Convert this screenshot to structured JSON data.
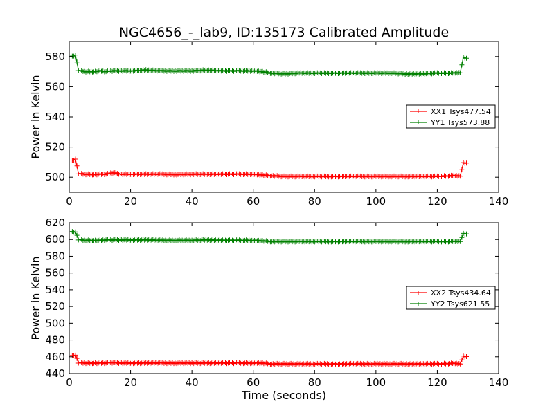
{
  "figure": {
    "title": "NGC4656_-_lab9, ID:135173 Calibrated Amplitude"
  },
  "chart_data": [
    {
      "type": "line",
      "title": "NGC4656_-_lab9, ID:135173 Calibrated Amplitude",
      "xlabel": "",
      "ylabel": "Power in Kelvin",
      "xlim": [
        0,
        140
      ],
      "ylim": [
        490,
        590
      ],
      "xticks": [
        "0",
        "20",
        "40",
        "60",
        "80",
        "100",
        "120",
        "140"
      ],
      "yticks": [
        "500",
        "520",
        "540",
        "560",
        "580"
      ],
      "grid": false,
      "legend_position": "center-right",
      "x": [
        1,
        2,
        3,
        5,
        8,
        10,
        12,
        14,
        17,
        20,
        25,
        30,
        35,
        40,
        45,
        50,
        55,
        60,
        63,
        66,
        70,
        75,
        80,
        85,
        90,
        95,
        100,
        105,
        110,
        115,
        120,
        125,
        127.5,
        128.5,
        129.5
      ],
      "series": [
        {
          "name": "XX1 Tsys477.54",
          "color": "#ff0000",
          "marker": "+",
          "values": [
            511,
            512,
            502.5,
            502,
            501.8,
            502,
            502,
            503,
            502,
            502,
            502,
            502,
            501.8,
            502,
            502,
            502,
            502,
            502,
            501.5,
            501,
            500.5,
            500.5,
            500.5,
            500.5,
            500.5,
            500.5,
            500.5,
            500.5,
            500.5,
            500.5,
            500.5,
            501,
            501,
            509.5,
            509.5
          ]
        },
        {
          "name": "YY1 Tsys573.88",
          "color": "#008000",
          "marker": "+",
          "values": [
            580,
            581,
            571,
            570,
            570,
            570.5,
            570,
            570.5,
            570.5,
            570.5,
            571,
            570.5,
            570.5,
            570.5,
            571,
            570.5,
            570.5,
            570.5,
            570,
            569,
            568.5,
            569,
            569,
            569,
            569,
            569,
            569,
            569,
            568.5,
            568.5,
            569,
            569,
            569.5,
            579.5,
            579
          ]
        }
      ]
    },
    {
      "type": "line",
      "title": "",
      "xlabel": "Time (seconds)",
      "ylabel": "Power in Kelvin",
      "xlim": [
        0,
        140
      ],
      "ylim": [
        440,
        620
      ],
      "xticks": [
        "0",
        "20",
        "40",
        "60",
        "80",
        "100",
        "120",
        "140"
      ],
      "yticks": [
        "440",
        "460",
        "480",
        "500",
        "520",
        "540",
        "560",
        "580",
        "600",
        "620"
      ],
      "grid": false,
      "legend_position": "center-right",
      "x": [
        1,
        2,
        3,
        5,
        8,
        10,
        12,
        14,
        17,
        20,
        25,
        30,
        35,
        40,
        45,
        50,
        55,
        60,
        63,
        66,
        70,
        75,
        80,
        85,
        90,
        95,
        100,
        105,
        110,
        115,
        120,
        125,
        127.5,
        128.5,
        129.5
      ],
      "series": [
        {
          "name": "XX2 Tsys434.64",
          "color": "#ff0000",
          "marker": "+",
          "values": [
            461,
            462,
            453,
            452.5,
            452.5,
            452.5,
            452.5,
            453,
            452.5,
            452.5,
            452.5,
            452.5,
            452.5,
            452.5,
            452.5,
            452.5,
            452.5,
            452.5,
            452.5,
            451.5,
            451.5,
            451.5,
            451.5,
            451.5,
            451.5,
            451.5,
            451.5,
            451.5,
            451.5,
            451.5,
            451.5,
            452,
            452,
            460.5,
            460.5
          ]
        },
        {
          "name": "YY2 Tsys621.55",
          "color": "#008000",
          "marker": "+",
          "values": [
            609,
            609,
            600,
            599,
            599,
            599,
            599.5,
            599.5,
            599.5,
            599.5,
            599.5,
            599,
            599,
            599,
            599.5,
            599,
            599,
            599,
            598.5,
            597.5,
            597.5,
            597.5,
            597.5,
            597.5,
            597.5,
            597.5,
            597.5,
            597.5,
            597.5,
            597.5,
            597.5,
            597.5,
            598,
            607,
            607
          ]
        }
      ]
    }
  ]
}
